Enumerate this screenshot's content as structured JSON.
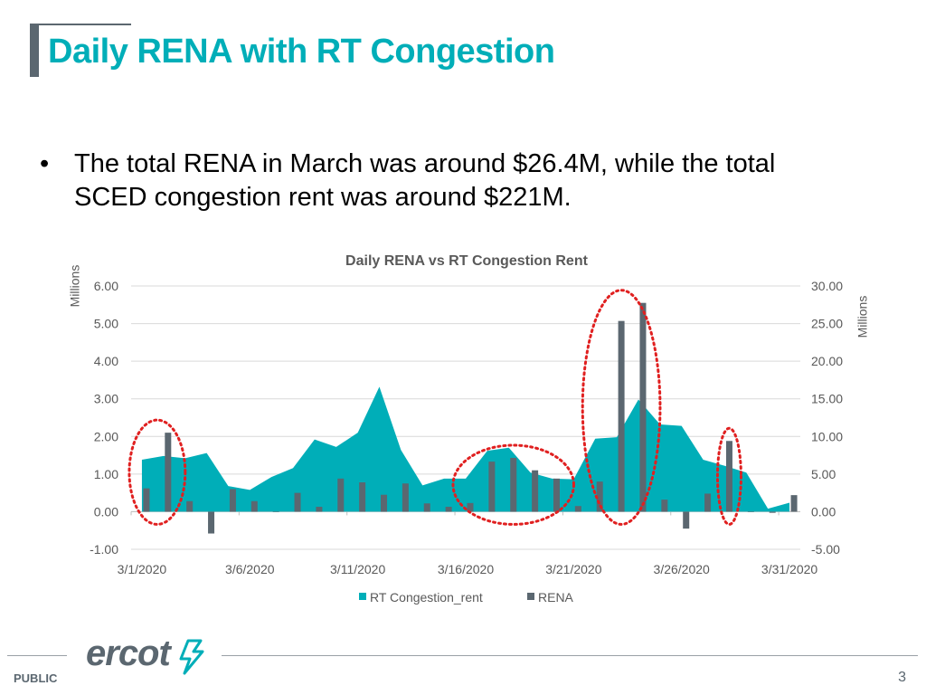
{
  "slide": {
    "title": "Daily RENA with RT Congestion",
    "bullet_symbol": "•",
    "bullet_text": "The total RENA in March was around $26.4M, while the total SCED congestion rent was around  $221M.",
    "footer_label": "PUBLIC",
    "page_number": "3",
    "logo_text": "ercot"
  },
  "colors": {
    "accent": "#00aeb8",
    "rena_bar": "#5b6770",
    "highlight": "#e02020"
  },
  "chart_data": {
    "type": "bar+area",
    "title": "Daily RENA vs RT Congestion Rent",
    "left_axis": {
      "label": "Millions",
      "min": -1,
      "max": 6,
      "ticks": [
        "6.00",
        "5.00",
        "4.00",
        "3.00",
        "2.00",
        "1.00",
        "0.00",
        "-1.00"
      ]
    },
    "right_axis": {
      "label": "Millions",
      "min": -5,
      "max": 30,
      "ticks": [
        "30.00",
        "25.00",
        "20.00",
        "15.00",
        "10.00",
        "5.00",
        "0.00",
        "-5.00"
      ]
    },
    "x_tick_labels": [
      "3/1/2020",
      "3/6/2020",
      "3/11/2020",
      "3/16/2020",
      "3/21/2020",
      "3/26/2020",
      "3/31/2020"
    ],
    "legend": [
      "RT Congestion_rent",
      "RENA"
    ],
    "legend_position": "bottom",
    "dates": [
      "3/1",
      "3/2",
      "3/3",
      "3/4",
      "3/5",
      "3/6",
      "3/7",
      "3/8",
      "3/9",
      "3/10",
      "3/11",
      "3/12",
      "3/13",
      "3/14",
      "3/15",
      "3/16",
      "3/17",
      "3/18",
      "3/19",
      "3/20",
      "3/21",
      "3/22",
      "3/23",
      "3/24",
      "3/25",
      "3/26",
      "3/27",
      "3/28",
      "3/29",
      "3/30",
      "3/31"
    ],
    "series": [
      {
        "name": "RT Congestion_rent",
        "axis": "right",
        "kind": "area",
        "values": [
          6.9,
          7.4,
          7.1,
          7.8,
          3.4,
          2.9,
          4.6,
          5.8,
          9.6,
          8.6,
          10.5,
          16.6,
          8.2,
          3.5,
          4.4,
          4.4,
          8.1,
          8.5,
          5.2,
          4.4,
          4.3,
          9.7,
          9.9,
          14.9,
          11.6,
          11.4,
          6.9,
          6.1,
          5.2,
          0.4,
          1.2
        ]
      },
      {
        "name": "RENA",
        "axis": "left",
        "kind": "bar",
        "values": [
          0.62,
          2.1,
          0.28,
          -0.58,
          0.6,
          0.28,
          0,
          0.5,
          0.13,
          0.88,
          0.78,
          0.45,
          0.75,
          0.22,
          0.13,
          0.23,
          1.33,
          1.43,
          1.1,
          0.88,
          0.15,
          0.8,
          5.07,
          5.55,
          0.32,
          -0.45,
          0.48,
          1.88,
          0,
          -0.03,
          0.44
        ]
      }
    ],
    "highlight_groups": [
      [
        0,
        1
      ],
      [
        15,
        19
      ],
      [
        21,
        23
      ],
      [
        27,
        27
      ]
    ],
    "grid": true
  }
}
